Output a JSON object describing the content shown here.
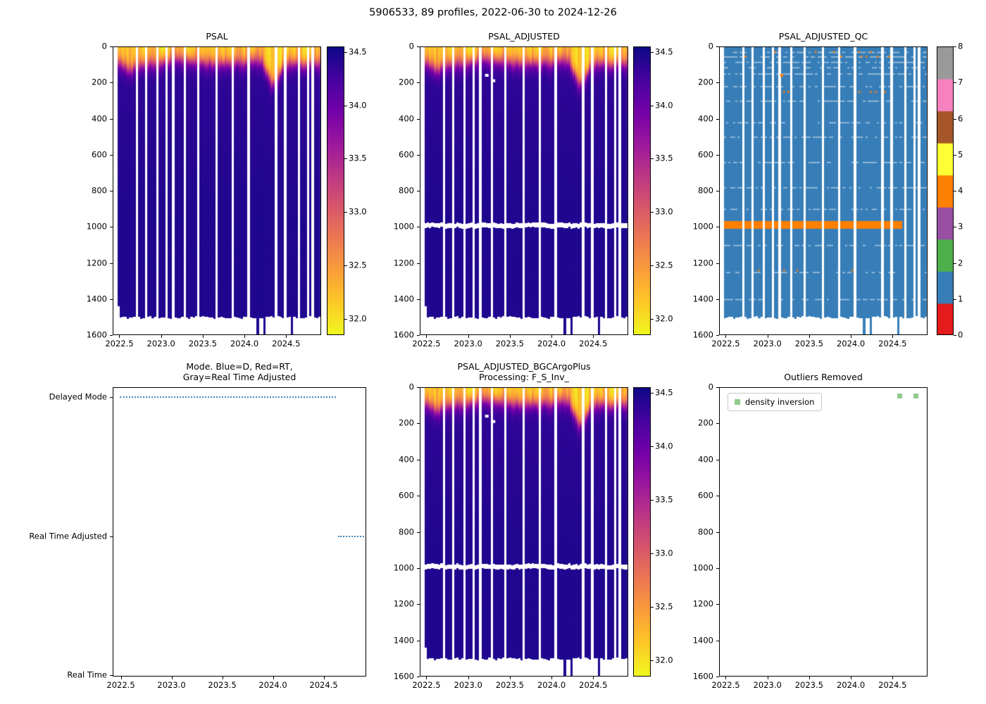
{
  "figure": {
    "title": "5906533, 89 profiles, 2022-06-30 to 2024-12-26"
  },
  "palette": {
    "plasma_anchors": [
      "#0d0887",
      "#46039f",
      "#7201a8",
      "#9c179e",
      "#bd3786",
      "#d8576b",
      "#ed7953",
      "#fb9f3a",
      "#fdca26",
      "#f0f921"
    ],
    "qc_flag_colors": [
      "#e41a1c",
      "#377eb8",
      "#4daf4a",
      "#984ea3",
      "#ff7f00",
      "#ffff33",
      "#a65628",
      "#f781bf",
      "#999999"
    ],
    "mode_line": "#3f87be",
    "outlier_marker": "#90cb8e",
    "axis_color": "#000000"
  },
  "axes_common": {
    "x_range": [
      2022.42,
      2024.92
    ],
    "x_tick_values": [
      2022.5,
      2023.0,
      2023.5,
      2024.0,
      2024.5
    ],
    "x_tick_labels": [
      "2022.5",
      "2023.0",
      "2023.5",
      "2024.0",
      "2024.5"
    ],
    "depth_range_m": [
      0,
      1600
    ],
    "depth_tick_values": [
      0,
      200,
      400,
      600,
      800,
      1000,
      1200,
      1400,
      1600
    ],
    "depth_tick_labels": [
      "0",
      "200",
      "400",
      "600",
      "800",
      "1000",
      "1200",
      "1400",
      "1600"
    ]
  },
  "profiles": {
    "count": 89,
    "t_start": 2022.49,
    "t_end": 2024.9,
    "missing_times": [
      2022.7,
      2022.82,
      2022.95,
      2023.07,
      2023.16,
      2023.28,
      2023.45,
      2023.66,
      2023.85,
      2024.05,
      2024.38,
      2024.5,
      2024.66,
      2024.75,
      2024.83
    ]
  },
  "chart_data": [
    {
      "id": "psal",
      "type": "heatmap",
      "title": "PSAL",
      "colorbar": {
        "colormap": "plasma_r",
        "vmin": 31.85,
        "vmax": 34.55,
        "tick_values": [
          32.0,
          32.5,
          33.0,
          33.5,
          34.0,
          34.5
        ],
        "tick_labels": [
          "32.0",
          "32.5",
          "33.0",
          "33.5",
          "34.0",
          "34.5"
        ]
      },
      "field": {
        "surface_salinity_min": 31.9,
        "surface_salinity_max": 32.45,
        "deep_salinity": 34.45,
        "halocline_depth_m": 85,
        "fresh_events": [
          {
            "time": 2024.35,
            "extra_depth_m": 130,
            "width_yr": 0.1
          },
          {
            "time": 2022.62,
            "extra_depth_m": 40,
            "width_yr": 0.08
          }
        ],
        "data_bottom_m": 1500,
        "deep_cast_times": [
          2024.17,
          2024.24,
          2024.58
        ],
        "gap_band_m": null
      }
    },
    {
      "id": "psal_adjusted",
      "type": "heatmap",
      "title": "PSAL_ADJUSTED",
      "colorbar": {
        "colormap": "plasma_r",
        "vmin": 31.85,
        "vmax": 34.55,
        "tick_values": [
          32.0,
          32.5,
          33.0,
          33.5,
          34.0,
          34.5
        ],
        "tick_labels": [
          "32.0",
          "32.5",
          "33.0",
          "33.5",
          "34.0",
          "34.5"
        ]
      },
      "field": {
        "surface_salinity_min": 31.9,
        "surface_salinity_max": 32.45,
        "deep_salinity": 34.45,
        "halocline_depth_m": 85,
        "fresh_events": [
          {
            "time": 2024.35,
            "extra_depth_m": 130,
            "width_yr": 0.1
          },
          {
            "time": 2022.62,
            "extra_depth_m": 40,
            "width_yr": 0.08
          }
        ],
        "data_bottom_m": 1500,
        "deep_cast_times": [
          2024.17,
          2024.24,
          2024.58
        ],
        "gap_band_m": {
          "center": 992,
          "half_height": 13
        },
        "white_specks": [
          {
            "t": 2023.22,
            "d": 160
          },
          {
            "t": 2023.3,
            "d": 190
          }
        ]
      }
    },
    {
      "id": "psal_adjusted_qc",
      "type": "qc_heatmap",
      "title": "PSAL_ADJUSTED_QC",
      "colorbar": {
        "discrete": true,
        "tick_values": [
          0,
          1,
          2,
          3,
          4,
          5,
          6,
          7,
          8
        ],
        "tick_labels": [
          "0",
          "1",
          "2",
          "3",
          "4",
          "5",
          "6",
          "7",
          "8"
        ]
      },
      "background_flag": 1,
      "flag4_band": {
        "flag": 4,
        "top_m": 968,
        "bottom_m": 1012,
        "t_start": 2022.49,
        "t_end": 2024.62
      },
      "light_row_depths": [
        30,
        55,
        85,
        115,
        150,
        220,
        300,
        420,
        500,
        640,
        780,
        900,
        1100,
        1250,
        1400
      ],
      "orange_speck_rows": [
        30,
        55,
        250,
        1240
      ],
      "isolated_flag4_point": {
        "t": 2023.17,
        "depth_m": 160
      },
      "data_bottom_m": 1500,
      "deep_cast_times": [
        2024.17,
        2024.24,
        2024.58
      ]
    },
    {
      "id": "mode",
      "type": "categorical_timeline",
      "title_lines": [
        "Mode. Blue=D, Red=RT,",
        "Gray=Real Time Adjusted"
      ],
      "categories": [
        "Delayed Mode",
        "Real Time Adjusted",
        "Real Time"
      ],
      "segments": [
        {
          "category": "Delayed Mode",
          "t_start": 2022.49,
          "t_end": 2024.62
        },
        {
          "category": "Real Time Adjusted",
          "t_start": 2024.64,
          "t_end": 2024.9
        }
      ]
    },
    {
      "id": "psal_adjusted_bgc",
      "type": "heatmap",
      "title_lines": [
        "PSAL_ADJUSTED_BGCArgoPlus",
        "Processing: F_S_Inv_"
      ],
      "colorbar": {
        "colormap": "plasma_r",
        "vmin": 31.85,
        "vmax": 34.55,
        "tick_values": [
          32.0,
          32.5,
          33.0,
          33.5,
          34.0,
          34.5
        ],
        "tick_labels": [
          "32.0",
          "32.5",
          "33.0",
          "33.5",
          "34.0",
          "34.5"
        ]
      },
      "field": {
        "surface_salinity_min": 31.9,
        "surface_salinity_max": 32.45,
        "deep_salinity": 34.45,
        "halocline_depth_m": 85,
        "fresh_events": [
          {
            "time": 2024.35,
            "extra_depth_m": 130,
            "width_yr": 0.1
          },
          {
            "time": 2022.62,
            "extra_depth_m": 40,
            "width_yr": 0.08
          }
        ],
        "data_bottom_m": 1500,
        "deep_cast_times": [
          2024.17,
          2024.24,
          2024.58
        ],
        "gap_band_m": {
          "center": 992,
          "half_height": 13
        },
        "white_specks": [
          {
            "t": 2023.22,
            "d": 160
          },
          {
            "t": 2023.3,
            "d": 190
          }
        ]
      }
    },
    {
      "id": "outliers",
      "type": "scatter",
      "title": "Outliers Removed",
      "legend": [
        {
          "label": "density inversion",
          "marker": "square"
        }
      ],
      "points": [
        {
          "t": 2024.58,
          "depth_m": 45
        },
        {
          "t": 2024.78,
          "depth_m": 45
        }
      ]
    }
  ]
}
